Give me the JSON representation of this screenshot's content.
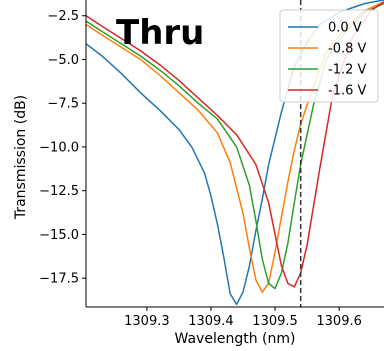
{
  "chart_data": {
    "type": "line",
    "title": "Thru",
    "xlabel": "Wavelength (nm)",
    "ylabel": "Transmission (dB)",
    "xlim": [
      1309.205,
      1309.67
    ],
    "ylim": [
      -19.15,
      -1.6
    ],
    "xticks": [
      1309.3,
      1309.4,
      1309.5,
      1309.6
    ],
    "yticks": [
      -2.5,
      -5.0,
      -7.5,
      -10.0,
      -12.5,
      -15.0,
      -17.5
    ],
    "xtick_labels": [
      "1309.3",
      "1309.4",
      "1309.5",
      "1309.6"
    ],
    "ytick_labels": [
      "−2.5",
      "−5.0",
      "−7.5",
      "−10.0",
      "−12.5",
      "−15.0",
      "−17.5"
    ],
    "vline": {
      "x": 1309.54,
      "style": "dashed",
      "color": "#333333"
    },
    "legend": {
      "placement": "top-right"
    },
    "grid": false,
    "series": [
      {
        "name": "0.0 V",
        "color": "#1f77b4",
        "x": [
          1309.205,
          1309.23,
          1309.26,
          1309.29,
          1309.32,
          1309.35,
          1309.37,
          1309.39,
          1309.4,
          1309.41,
          1309.42,
          1309.43,
          1309.44,
          1309.45,
          1309.46,
          1309.47,
          1309.48,
          1309.49,
          1309.5,
          1309.51,
          1309.52,
          1309.53,
          1309.55,
          1309.57,
          1309.6,
          1309.64,
          1309.67
        ],
        "y": [
          -4.1,
          -4.8,
          -5.8,
          -6.9,
          -7.9,
          -9.0,
          -10.0,
          -11.5,
          -12.8,
          -14.4,
          -16.3,
          -18.4,
          -19.0,
          -18.3,
          -16.8,
          -14.8,
          -13.0,
          -11.0,
          -9.5,
          -8.0,
          -6.7,
          -5.4,
          -4.0,
          -3.0,
          -2.3,
          -1.8,
          -1.6
        ]
      },
      {
        "name": "-0.8 V",
        "color": "#ff7f0e",
        "x": [
          1309.205,
          1309.23,
          1309.26,
          1309.29,
          1309.32,
          1309.35,
          1309.38,
          1309.41,
          1309.43,
          1309.45,
          1309.46,
          1309.47,
          1309.48,
          1309.49,
          1309.5,
          1309.51,
          1309.52,
          1309.53,
          1309.54,
          1309.56,
          1309.58,
          1309.61,
          1309.64,
          1309.67
        ],
        "y": [
          -3.0,
          -3.6,
          -4.3,
          -5.0,
          -5.9,
          -6.9,
          -7.9,
          -9.2,
          -10.9,
          -13.8,
          -15.8,
          -17.6,
          -18.3,
          -17.8,
          -16.0,
          -14.0,
          -12.0,
          -10.2,
          -8.7,
          -6.5,
          -4.6,
          -3.2,
          -2.2,
          -1.7
        ]
      },
      {
        "name": "-1.2 V",
        "color": "#2ca02c",
        "x": [
          1309.205,
          1309.23,
          1309.26,
          1309.29,
          1309.32,
          1309.35,
          1309.38,
          1309.41,
          1309.44,
          1309.46,
          1309.47,
          1309.48,
          1309.49,
          1309.5,
          1309.51,
          1309.52,
          1309.53,
          1309.54,
          1309.56,
          1309.58,
          1309.61,
          1309.64,
          1309.67
        ],
        "y": [
          -2.8,
          -3.4,
          -4.1,
          -4.8,
          -5.6,
          -6.5,
          -7.5,
          -8.4,
          -10.0,
          -12.2,
          -14.2,
          -16.4,
          -17.8,
          -18.1,
          -17.2,
          -15.5,
          -13.2,
          -11.0,
          -7.6,
          -5.0,
          -3.4,
          -2.3,
          -1.8
        ]
      },
      {
        "name": "-1.6 V",
        "color": "#d62728",
        "x": [
          1309.205,
          1309.23,
          1309.26,
          1309.29,
          1309.32,
          1309.35,
          1309.38,
          1309.41,
          1309.44,
          1309.47,
          1309.49,
          1309.5,
          1309.51,
          1309.52,
          1309.53,
          1309.54,
          1309.55,
          1309.57,
          1309.59,
          1309.62,
          1309.65,
          1309.67
        ],
        "y": [
          -2.5,
          -3.1,
          -3.8,
          -4.5,
          -5.3,
          -6.2,
          -7.2,
          -8.2,
          -9.3,
          -11.0,
          -13.2,
          -15.0,
          -16.8,
          -17.8,
          -18.0,
          -17.2,
          -15.6,
          -11.2,
          -7.0,
          -3.8,
          -2.2,
          -1.7
        ]
      }
    ]
  }
}
